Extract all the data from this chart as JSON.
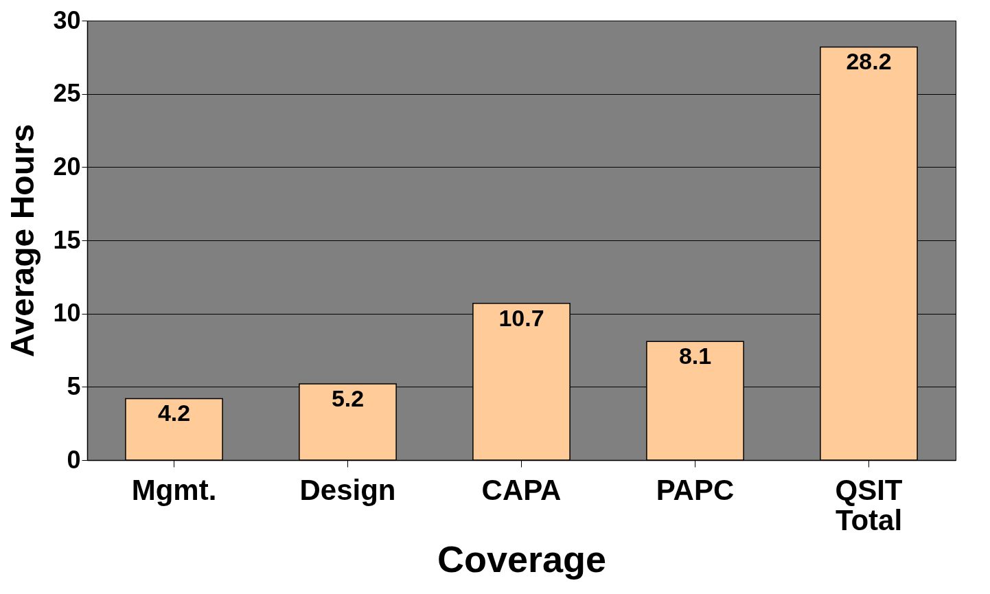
{
  "chart_data": {
    "type": "bar",
    "xlabel": "Coverage",
    "ylabel": "Average Hours",
    "categories": [
      "Mgmt.",
      "Design",
      "CAPA",
      "PAPC",
      "QSIT Total"
    ],
    "values": [
      4.2,
      5.2,
      10.7,
      8.1,
      28.2
    ],
    "color": "#ffcc99",
    "ylim": [
      0,
      30
    ],
    "yticks": [
      0,
      5,
      10,
      15,
      20,
      25,
      30
    ],
    "grid": "y",
    "data_labels": true
  }
}
